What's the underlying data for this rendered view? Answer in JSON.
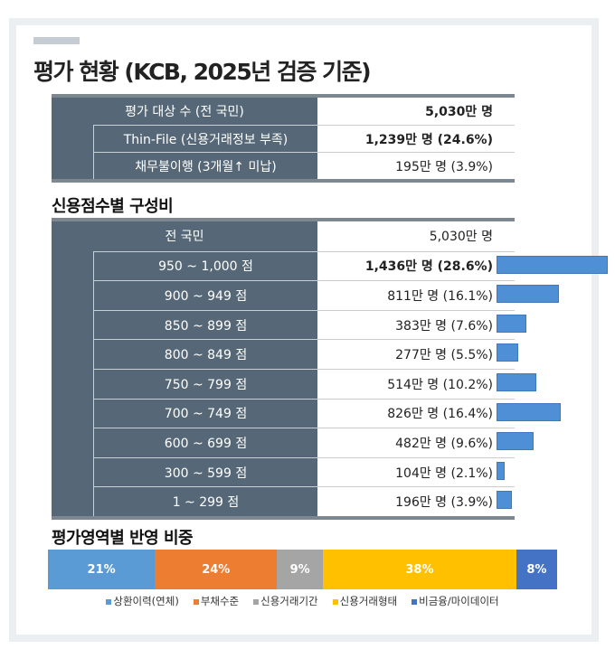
{
  "title": "평가 현황 (KCB, 2025년 검증 기준)",
  "summary": {
    "rows": [
      {
        "label": "평가 대상 수 (전 국민)",
        "value": "5,030만 명",
        "bold": true,
        "sub": false
      },
      {
        "label": "Thin-File  (신용거래정보 부족)",
        "value": "1,239만 명 (24.6%)",
        "bold": true,
        "sub": true
      },
      {
        "label": "채무불이행 (3개월↑ 미납)",
        "value": "195만 명 (3.9%)",
        "bold": false,
        "sub": true
      }
    ]
  },
  "score_section": {
    "title": "신용점수별 구성비",
    "total": {
      "label": "전 국민",
      "value": "5,030만 명"
    },
    "rows": [
      {
        "label": "950 ~ 1,000 점",
        "value": "1,436만 명 (28.6%)",
        "pct": 28.6,
        "bold": true
      },
      {
        "label": "900 ~ 949 점",
        "value": "811만 명 (16.1%)",
        "pct": 16.1
      },
      {
        "label": "850 ~ 899 점",
        "value": "383만 명 (7.6%)",
        "pct": 7.6
      },
      {
        "label": "800 ~ 849 점",
        "value": "277만 명 (5.5%)",
        "pct": 5.5
      },
      {
        "label": "750 ~ 799 점",
        "value": "514만 명 (10.2%)",
        "pct": 10.2
      },
      {
        "label": "700 ~ 749 점",
        "value": "826만 명 (16.4%)",
        "pct": 16.4
      },
      {
        "label": "600 ~ 699 점",
        "value": "482만 명 (9.6%)",
        "pct": 9.6
      },
      {
        "label": "300 ~ 599 점",
        "value": "104만 명 (2.1%)",
        "pct": 2.1
      },
      {
        "label": "1 ~ 299 점",
        "value": "196만 명 (3.9%)",
        "pct": 3.9
      }
    ]
  },
  "weight_section": {
    "title": "평가영역별 반영 비중",
    "segments": [
      {
        "label": "21%",
        "value": 21,
        "name": "상환이력(연체)",
        "color": "#5b9bd5"
      },
      {
        "label": "24%",
        "value": 24,
        "name": "부채수준",
        "color": "#ed7d31"
      },
      {
        "label": "9%",
        "value": 9,
        "name": "신용거래기간",
        "color": "#a5a5a5"
      },
      {
        "label": "38%",
        "value": 38,
        "name": "신용거래형태",
        "color": "#ffc000"
      },
      {
        "label": "8%",
        "value": 8,
        "name": "비금융/마이데이터",
        "color": "#4472c4"
      }
    ]
  }
}
